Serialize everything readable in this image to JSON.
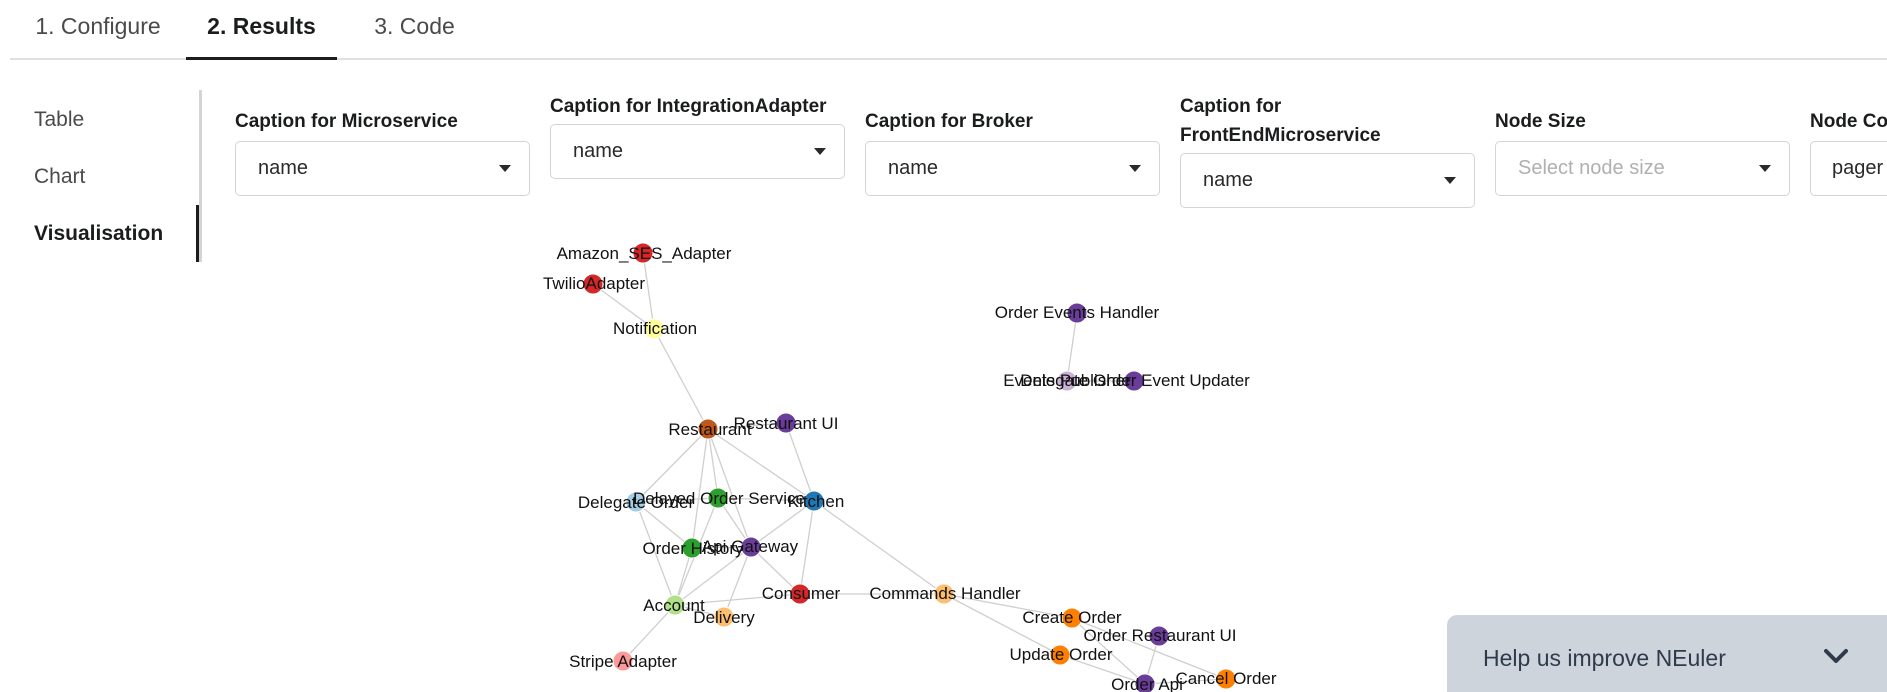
{
  "tabs": [
    {
      "label": "1. Configure"
    },
    {
      "label": "2. Results"
    },
    {
      "label": "3. Code"
    }
  ],
  "active_tab": "2. Results",
  "sidebar": {
    "items": [
      {
        "label": "Table"
      },
      {
        "label": "Chart"
      },
      {
        "label": "Visualisation"
      }
    ],
    "active": "Visualisation"
  },
  "fields": [
    {
      "label": "Caption for Microservice",
      "value": "name"
    },
    {
      "label": "Caption for IntegrationAdapter",
      "value": "name"
    },
    {
      "label": "Caption for Broker",
      "value": "name"
    },
    {
      "label": "Caption for FrontEndMicroservice",
      "value": "name"
    },
    {
      "label": "Node Size",
      "placeholder": "Select node size"
    },
    {
      "label": "Node Co",
      "value": "pager"
    }
  ],
  "graph": {
    "nodes": [
      {
        "id": "amazon",
        "label": "Amazon_SES_Adapter",
        "color": "#d62728"
      },
      {
        "id": "twilio",
        "label": "TwilioAdapter",
        "color": "#d62728"
      },
      {
        "id": "notification",
        "label": "Notification",
        "color": "#ffff99"
      },
      {
        "id": "orderEventsHandler",
        "label": "Order Events Handler",
        "color": "#6a3d9a"
      },
      {
        "id": "eventsPublisher",
        "label": "Events Publisher",
        "color": "#cab2d6"
      },
      {
        "id": "delegateOrderEvent",
        "label": "Delegate Order Event Updater",
        "color": "#6a3d9a"
      },
      {
        "id": "restaurant",
        "label": "Restaurant",
        "color": "#c2571a"
      },
      {
        "id": "restaurantUI",
        "label": "Restaurant UI",
        "color": "#6a3d9a"
      },
      {
        "id": "delegateOrder",
        "label": "Delegate Order",
        "color": "#a6cee3"
      },
      {
        "id": "delayedOrder",
        "label": "Delayed Order Service",
        "color": "#2ca02c"
      },
      {
        "id": "kitchen",
        "label": "Kitchen",
        "color": "#1f77b4"
      },
      {
        "id": "orderHistory",
        "label": "Order History",
        "color": "#2ca02c"
      },
      {
        "id": "apiGateway",
        "label": "Api Gateway",
        "color": "#6a3d9a"
      },
      {
        "id": "consumer",
        "label": "Consumer",
        "color": "#d62728"
      },
      {
        "id": "account",
        "label": "Account",
        "color": "#b2df8a"
      },
      {
        "id": "delivery",
        "label": "Delivery",
        "color": "#fdbf6f"
      },
      {
        "id": "commandsHandler",
        "label": "Commands Handler",
        "color": "#fdbf6f"
      },
      {
        "id": "stripe",
        "label": "Stripe Adapter",
        "color": "#fb9a99"
      },
      {
        "id": "createOrder",
        "label": "Create Order",
        "color": "#ff7f00"
      },
      {
        "id": "orderRestaurantUI",
        "label": "Order Restaurant UI",
        "color": "#6a3d9a"
      },
      {
        "id": "updateOrder",
        "label": "Update Order",
        "color": "#ff7f00"
      },
      {
        "id": "cancelOrder",
        "label": "Cancel Order",
        "color": "#ff7f00"
      },
      {
        "id": "orderApi",
        "label": "Order Api",
        "color": "#6a3d9a"
      }
    ],
    "edges": [
      [
        "amazon",
        "notification"
      ],
      [
        "twilio",
        "notification"
      ],
      [
        "notification",
        "restaurant"
      ],
      [
        "orderEventsHandler",
        "eventsPublisher"
      ],
      [
        "eventsPublisher",
        "delegateOrderEvent"
      ],
      [
        "restaurant",
        "restaurantUI"
      ],
      [
        "restaurant",
        "delegateOrder"
      ],
      [
        "restaurant",
        "delayedOrder"
      ],
      [
        "restaurant",
        "kitchen"
      ],
      [
        "restaurant",
        "orderHistory"
      ],
      [
        "restaurant",
        "apiGateway"
      ],
      [
        "restaurantUI",
        "kitchen"
      ],
      [
        "delayedOrder",
        "kitchen"
      ],
      [
        "delayedOrder",
        "delegateOrder"
      ],
      [
        "delayedOrder",
        "apiGateway"
      ],
      [
        "delayedOrder",
        "account"
      ],
      [
        "delegateOrder",
        "orderHistory"
      ],
      [
        "delegateOrder",
        "account"
      ],
      [
        "kitchen",
        "apiGateway"
      ],
      [
        "kitchen",
        "consumer"
      ],
      [
        "kitchen",
        "commandsHandler"
      ],
      [
        "orderHistory",
        "apiGateway"
      ],
      [
        "orderHistory",
        "account"
      ],
      [
        "apiGateway",
        "consumer"
      ],
      [
        "apiGateway",
        "account"
      ],
      [
        "apiGateway",
        "delivery"
      ],
      [
        "account",
        "consumer"
      ],
      [
        "account",
        "stripe"
      ],
      [
        "consumer",
        "commandsHandler"
      ],
      [
        "commandsHandler",
        "createOrder"
      ],
      [
        "commandsHandler",
        "updateOrder"
      ],
      [
        "createOrder",
        "cancelOrder"
      ],
      [
        "createOrder",
        "orderApi"
      ],
      [
        "updateOrder",
        "orderApi"
      ],
      [
        "orderRestaurantUI",
        "orderApi"
      ],
      [
        "cancelOrder",
        "orderApi"
      ],
      [
        "delivery",
        "account"
      ]
    ]
  },
  "feedback": {
    "label": "Help us improve NEuler",
    "icon": "chevron-down-icon"
  }
}
